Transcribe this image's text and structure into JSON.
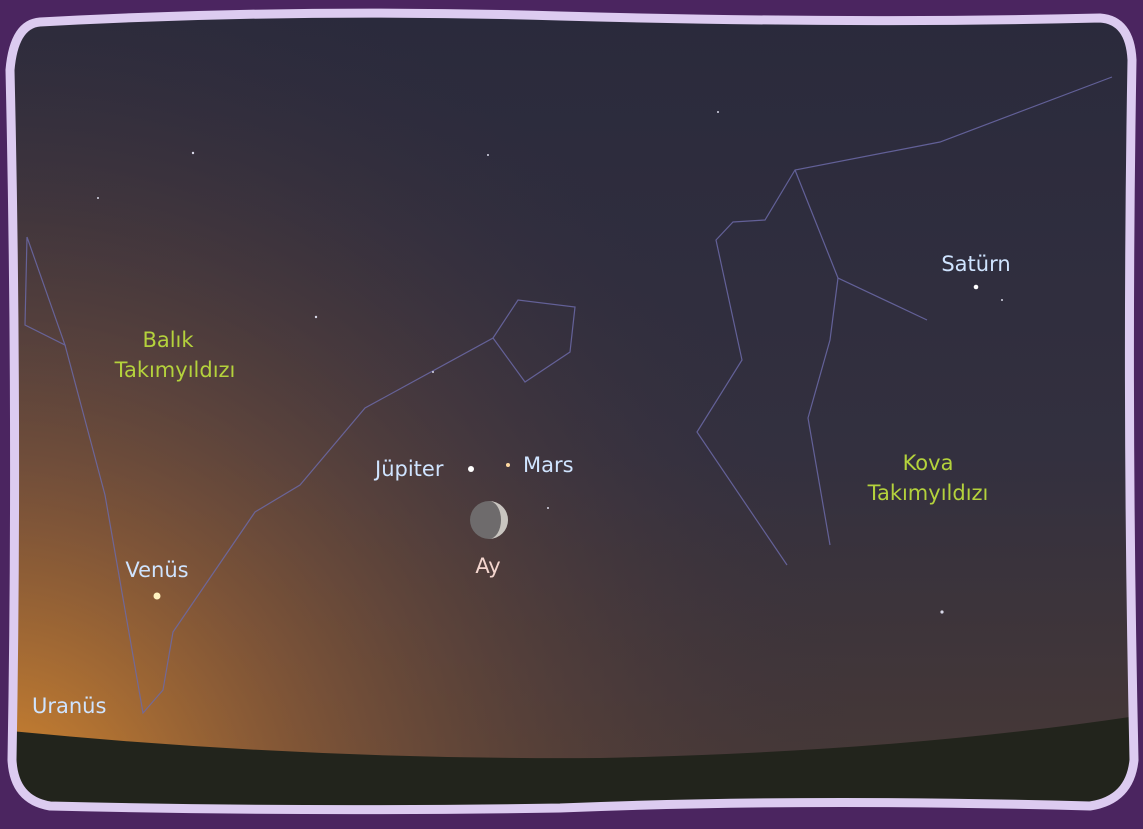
{
  "labels": {
    "saturn": "Satürn",
    "jupiter": "Jüpiter",
    "mars": "Mars",
    "moon": "Ay",
    "venus": "Venüs",
    "uranus": "Uranüs"
  },
  "constellations": {
    "pisces": [
      "Balık",
      "Takımyıldızı"
    ],
    "aquarius": [
      "Kova",
      "Takımyıldızı"
    ]
  }
}
